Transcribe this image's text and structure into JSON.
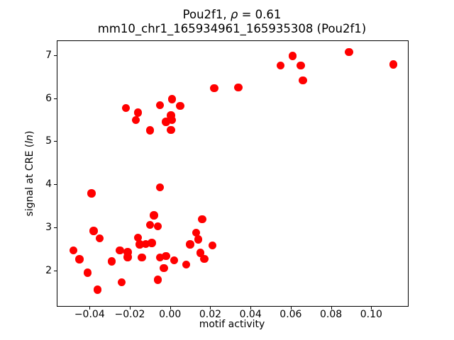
{
  "chart_data": {
    "type": "scatter",
    "title_line1": {
      "prefix": "Pou2f1, ",
      "rho": "ρ",
      "suffix": " = 0.61"
    },
    "title_line2": "mm10_chr1_165934961_165935308 (Pou2f1)",
    "xlabel": "motif activity",
    "ylabel": {
      "prefix": "signal at CRE (",
      "italic": "ln",
      "suffix": ")"
    },
    "marker_color": "#ff0000",
    "axis_color": "#000000",
    "xlim": [
      -0.0565,
      0.1184
    ],
    "ylim": [
      1.17,
      7.34
    ],
    "x_ticks": {
      "values": [
        -0.04,
        -0.02,
        0.0,
        0.02,
        0.04,
        0.06,
        0.08,
        0.1
      ],
      "labels": [
        "−0.04",
        "−0.02",
        "0.00",
        "0.02",
        "0.04",
        "0.06",
        "0.08",
        "0.10"
      ]
    },
    "y_ticks": {
      "values": [
        2,
        3,
        4,
        5,
        6,
        7
      ],
      "labels": [
        "2",
        "3",
        "4",
        "5",
        "6",
        "7"
      ]
    },
    "grid": false,
    "legend": null,
    "points": [
      [
        0.022,
        6.23
      ],
      [
        0.034,
        6.25
      ],
      [
        0.055,
        6.76
      ],
      [
        0.061,
        6.98
      ],
      [
        0.065,
        6.76
      ],
      [
        0.066,
        6.41
      ],
      [
        0.089,
        7.07
      ],
      [
        0.111,
        6.78
      ],
      [
        -0.022,
        5.77
      ],
      [
        -0.016,
        5.66
      ],
      [
        -0.017,
        5.49
      ],
      [
        -0.005,
        5.84
      ],
      [
        0.001,
        5.98
      ],
      [
        0.005,
        5.82
      ],
      [
        0.0005,
        5.6
      ],
      [
        0.001,
        5.49
      ],
      [
        -0.002,
        5.45
      ],
      [
        -0.01,
        5.25
      ],
      [
        0.0005,
        5.26
      ],
      [
        -0.039,
        3.79
      ],
      [
        -0.005,
        3.93
      ],
      [
        -0.008,
        3.28
      ],
      [
        -0.01,
        3.06
      ],
      [
        -0.006,
        3.03
      ],
      [
        0.016,
        3.19
      ],
      [
        -0.038,
        2.92
      ],
      [
        -0.035,
        2.75
      ],
      [
        -0.016,
        2.76
      ],
      [
        -0.015,
        2.61
      ],
      [
        -0.012,
        2.62
      ],
      [
        -0.009,
        2.64
      ],
      [
        0.013,
        2.88
      ],
      [
        0.014,
        2.72
      ],
      [
        0.01,
        2.61
      ],
      [
        0.021,
        2.58
      ],
      [
        -0.048,
        2.47
      ],
      [
        -0.045,
        2.26
      ],
      [
        -0.029,
        2.21
      ],
      [
        -0.025,
        2.47
      ],
      [
        -0.021,
        2.43
      ],
      [
        -0.021,
        2.31
      ],
      [
        -0.014,
        2.3
      ],
      [
        -0.005,
        2.3
      ],
      [
        -0.002,
        2.34
      ],
      [
        0.002,
        2.24
      ],
      [
        0.015,
        2.41
      ],
      [
        0.017,
        2.27
      ],
      [
        0.008,
        2.14
      ],
      [
        -0.003,
        2.06
      ],
      [
        -0.006,
        1.79
      ],
      [
        -0.041,
        1.95
      ],
      [
        -0.024,
        1.73
      ],
      [
        -0.036,
        1.56
      ]
    ]
  }
}
